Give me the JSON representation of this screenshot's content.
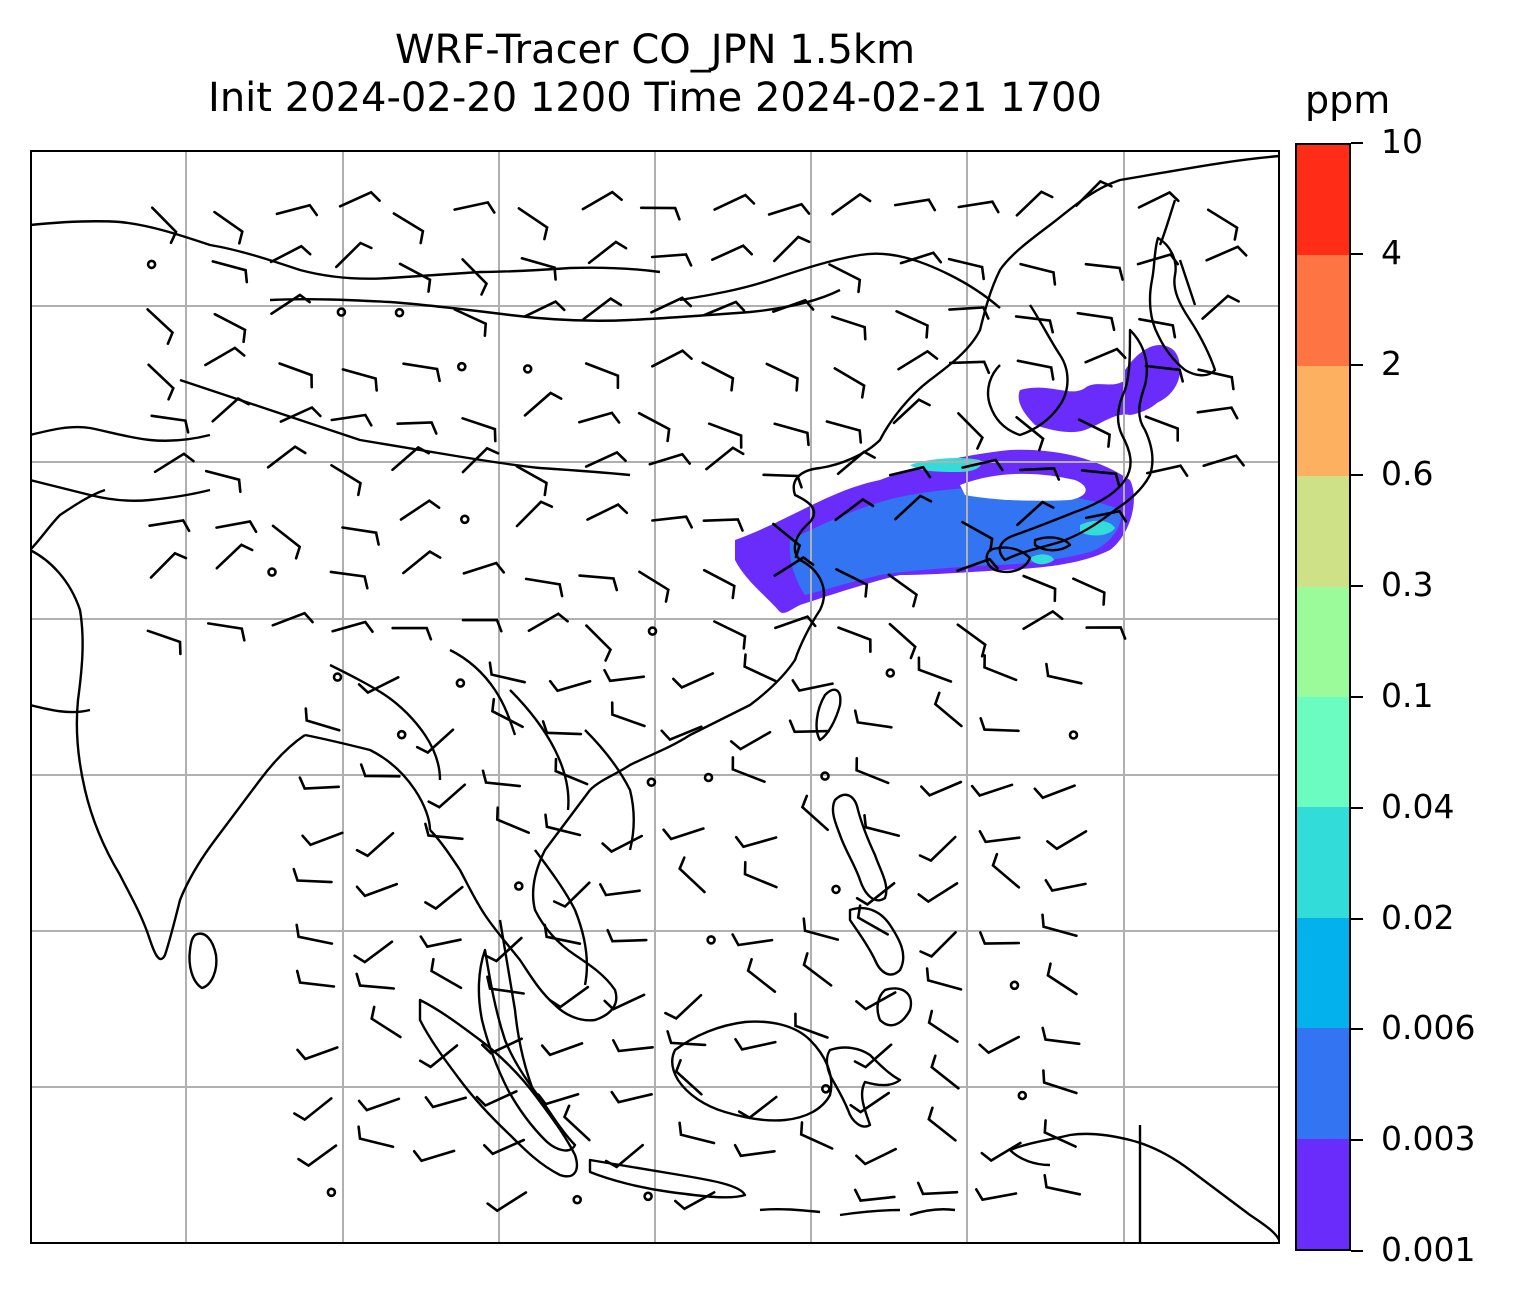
{
  "title": {
    "line1": "WRF-Tracer CO_JPN 1.5km",
    "line2": "Init 2024-02-20 1200 Time 2024-02-21 1700"
  },
  "colorbar": {
    "unit": "ppm",
    "levels": [
      "0.001",
      "0.003",
      "0.006",
      "0.02",
      "0.04",
      "0.1",
      "0.3",
      "0.6",
      "2",
      "4",
      "10"
    ],
    "colors": [
      "#6a2cfa",
      "#3274f2",
      "#03b1ed",
      "#31dcd9",
      "#6afcc0",
      "#9bfb9b",
      "#cfe186",
      "#feb061",
      "#fe7442",
      "#ff2d17"
    ]
  },
  "map": {
    "gridline_color": "#b0b0b0",
    "coastline_color": "#000000",
    "plume_colors": {
      "low": "#6a2cfa",
      "mid": "#3274f2",
      "high": "#31dcd9"
    }
  }
}
